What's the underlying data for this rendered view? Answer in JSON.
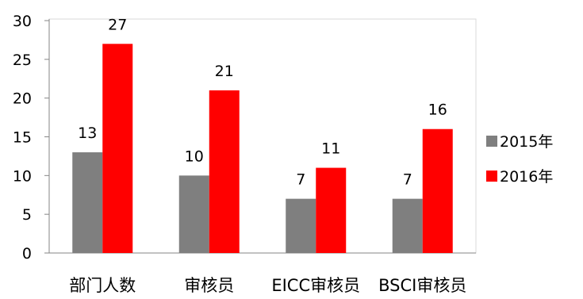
{
  "chart_data": {
    "type": "bar",
    "title": "",
    "xlabel": "",
    "ylabel": "",
    "categories": [
      "部门人数",
      "审核员",
      "EICC审核员",
      "BSCI审核员"
    ],
    "series": [
      {
        "name": "2015年",
        "color": "#7f7f7f",
        "values": [
          13,
          10,
          7,
          7
        ]
      },
      {
        "name": "2016年",
        "color": "#ff0000",
        "values": [
          27,
          21,
          11,
          16
        ]
      }
    ],
    "ylim": [
      0,
      30
    ],
    "yticks": [
      0,
      5,
      10,
      15,
      20,
      25,
      30
    ],
    "grid": false,
    "legend": "right",
    "data_labels": true
  }
}
